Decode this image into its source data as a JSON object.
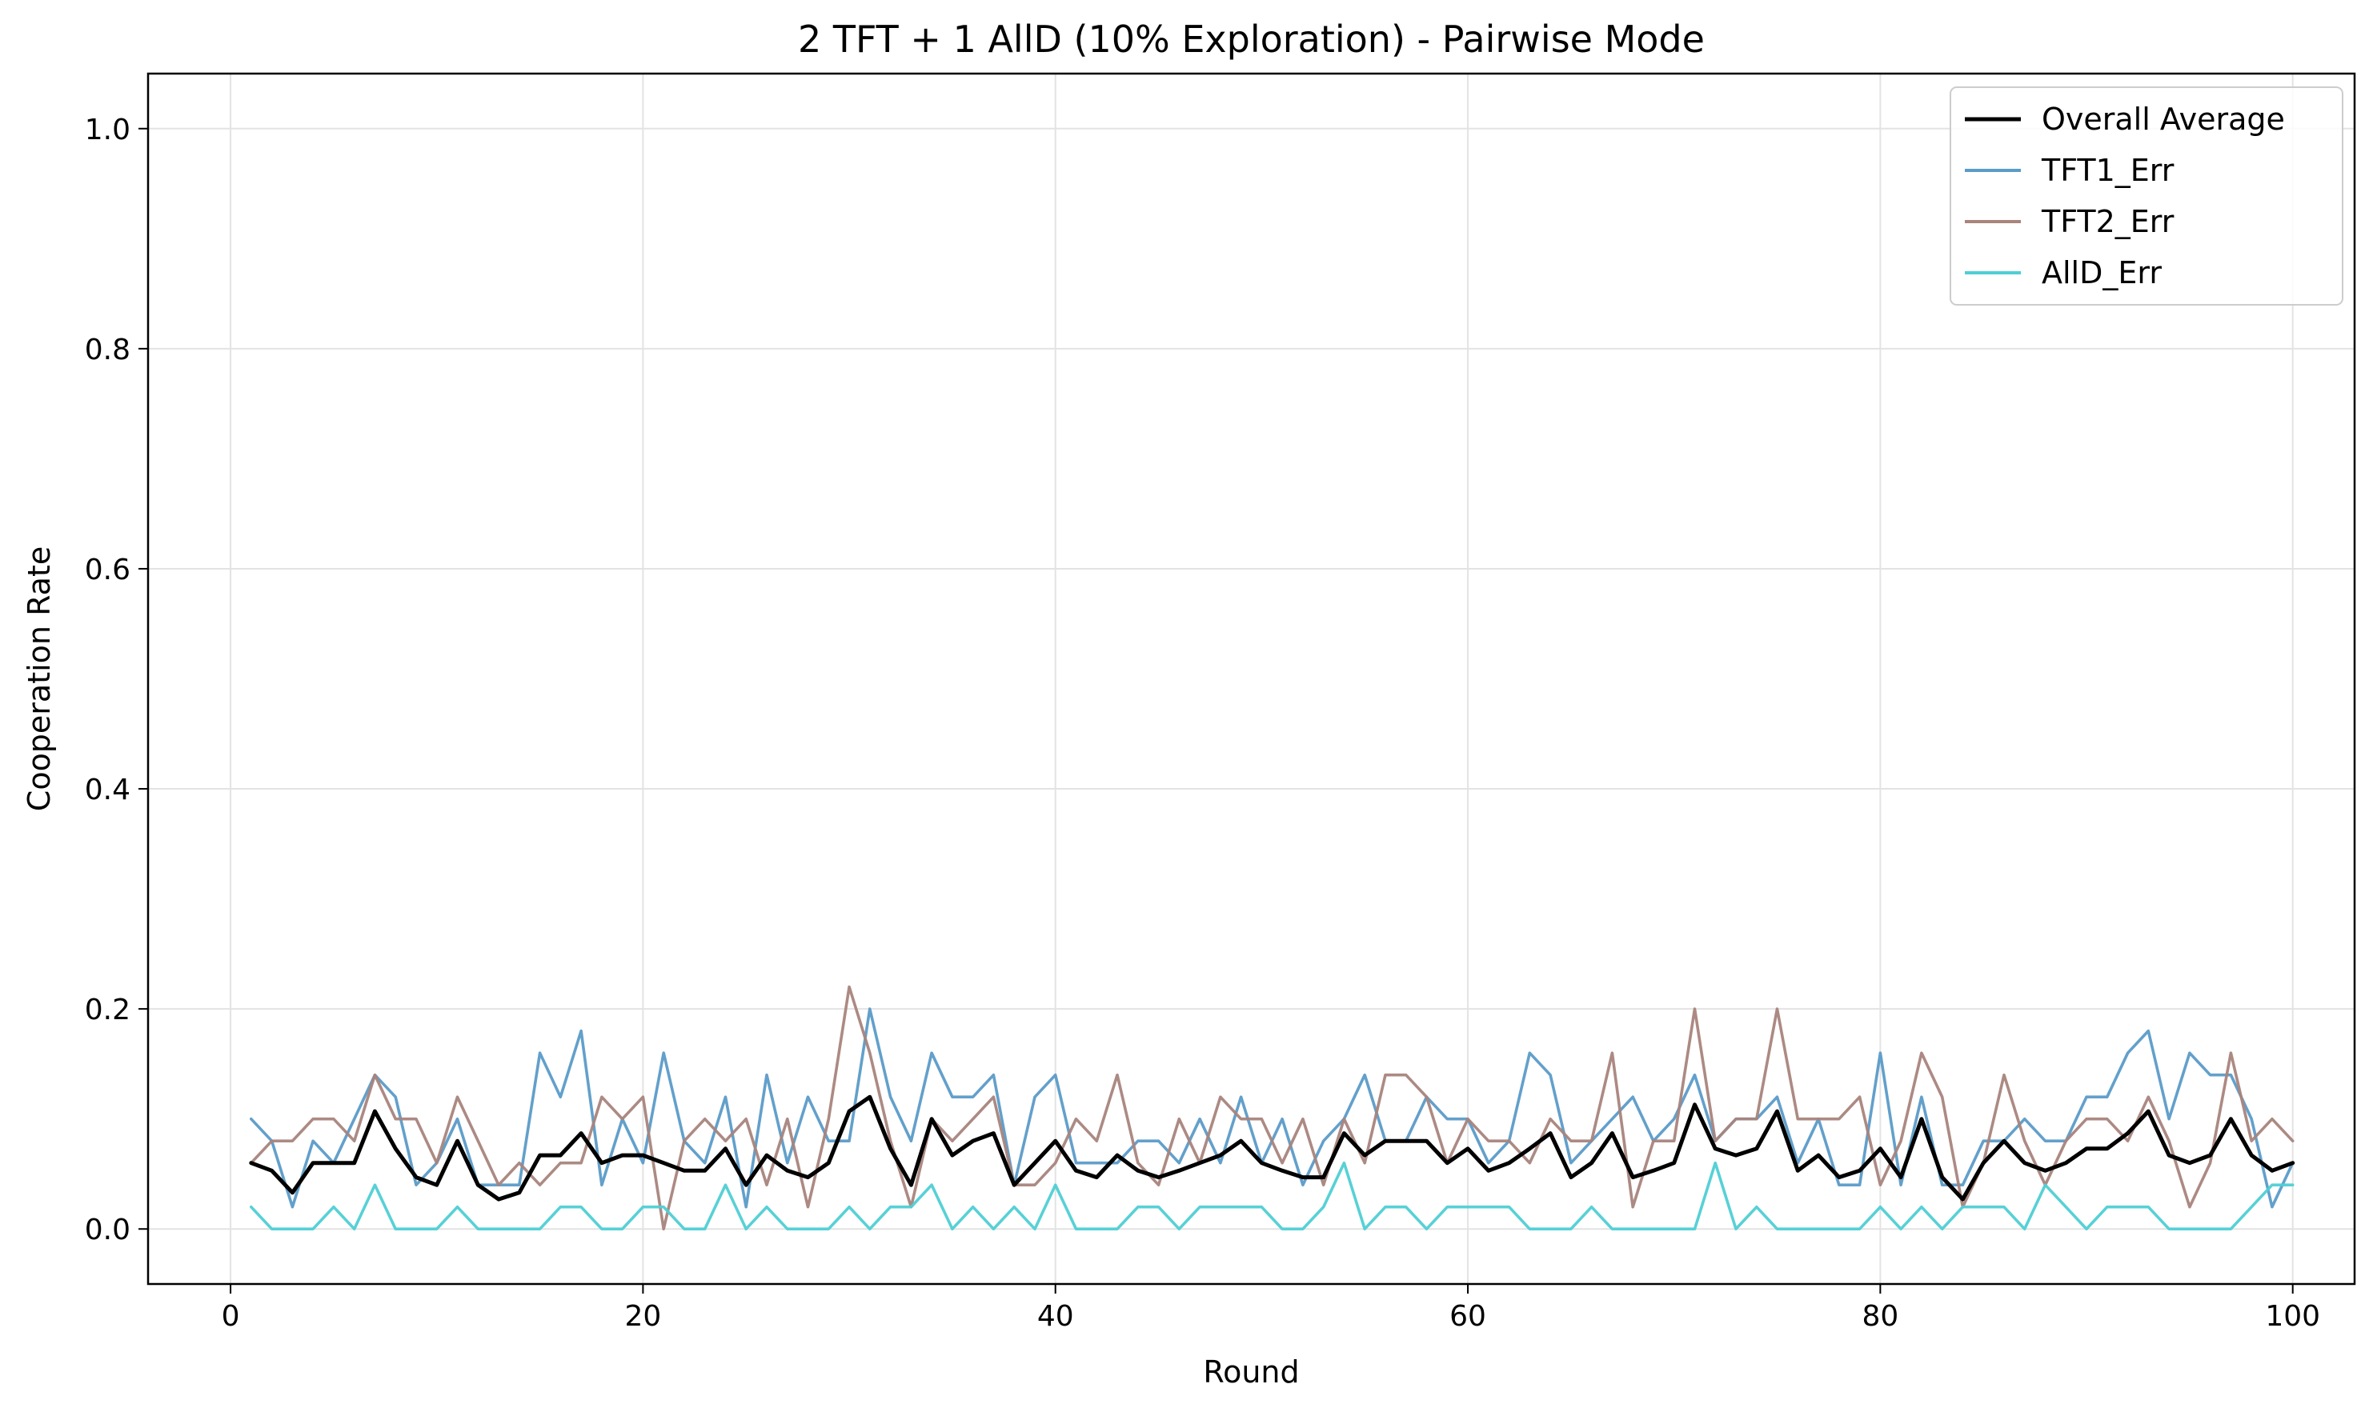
{
  "chart_data": {
    "type": "line",
    "title": "2 TFT + 1 AllD (10% Exploration) - Pairwise Mode",
    "xlabel": "Round",
    "ylabel": "Cooperation Rate",
    "xlim": [
      -4,
      103
    ],
    "ylim": [
      -0.05,
      1.05
    ],
    "xticks": [
      0,
      20,
      40,
      60,
      80,
      100
    ],
    "yticks": [
      0.0,
      0.2,
      0.4,
      0.6,
      0.8,
      1.0
    ],
    "xtick_labels": [
      "0",
      "20",
      "40",
      "60",
      "80",
      "100"
    ],
    "ytick_labels": [
      "0.0",
      "0.2",
      "0.4",
      "0.6",
      "0.8",
      "1.0"
    ],
    "grid": true,
    "legend_position": "top-right",
    "x": [
      1,
      2,
      3,
      4,
      5,
      6,
      7,
      8,
      9,
      10,
      11,
      12,
      13,
      14,
      15,
      16,
      17,
      18,
      19,
      20,
      21,
      22,
      23,
      24,
      25,
      26,
      27,
      28,
      29,
      30,
      31,
      32,
      33,
      34,
      35,
      36,
      37,
      38,
      39,
      40,
      41,
      42,
      43,
      44,
      45,
      46,
      47,
      48,
      49,
      50,
      51,
      52,
      53,
      54,
      55,
      56,
      57,
      58,
      59,
      60,
      61,
      62,
      63,
      64,
      65,
      66,
      67,
      68,
      69,
      70,
      71,
      72,
      73,
      74,
      75,
      76,
      77,
      78,
      79,
      80,
      81,
      82,
      83,
      84,
      85,
      86,
      87,
      88,
      89,
      90,
      91,
      92,
      93,
      94,
      95,
      96,
      97,
      98,
      99,
      100
    ],
    "series": [
      {
        "name": "Overall Average",
        "color": "#000000",
        "values": [
          0.06,
          0.053,
          0.033,
          0.06,
          0.06,
          0.06,
          0.107,
          0.073,
          0.047,
          0.04,
          0.08,
          0.04,
          0.027,
          0.033,
          0.067,
          0.067,
          0.087,
          0.06,
          0.067,
          0.067,
          0.06,
          0.053,
          0.053,
          0.073,
          0.04,
          0.067,
          0.053,
          0.047,
          0.06,
          0.107,
          0.12,
          0.073,
          0.04,
          0.1,
          0.067,
          0.08,
          0.087,
          0.04,
          0.06,
          0.08,
          0.053,
          0.047,
          0.067,
          0.053,
          0.047,
          0.053,
          0.06,
          0.067,
          0.08,
          0.06,
          0.053,
          0.047,
          0.047,
          0.087,
          0.067,
          0.08,
          0.08,
          0.08,
          0.06,
          0.073,
          0.053,
          0.06,
          0.073,
          0.087,
          0.047,
          0.06,
          0.087,
          0.047,
          0.053,
          0.06,
          0.113,
          0.073,
          0.067,
          0.073,
          0.107,
          0.053,
          0.067,
          0.047,
          0.053,
          0.073,
          0.047,
          0.1,
          0.047,
          0.027,
          0.06,
          0.08,
          0.06,
          0.053,
          0.06,
          0.073,
          0.073,
          0.087,
          0.107,
          0.067,
          0.06,
          0.067,
          0.1,
          0.067,
          0.053,
          0.06
        ]
      },
      {
        "name": "TFT1_Err",
        "color": "#5b9bc8",
        "values": [
          0.1,
          0.08,
          0.02,
          0.08,
          0.06,
          0.1,
          0.14,
          0.12,
          0.04,
          0.06,
          0.1,
          0.04,
          0.04,
          0.04,
          0.16,
          0.12,
          0.18,
          0.04,
          0.1,
          0.06,
          0.16,
          0.08,
          0.06,
          0.12,
          0.02,
          0.14,
          0.06,
          0.12,
          0.08,
          0.08,
          0.2,
          0.12,
          0.08,
          0.16,
          0.12,
          0.12,
          0.14,
          0.04,
          0.12,
          0.14,
          0.06,
          0.06,
          0.06,
          0.08,
          0.08,
          0.06,
          0.1,
          0.06,
          0.12,
          0.06,
          0.1,
          0.04,
          0.08,
          0.1,
          0.14,
          0.08,
          0.08,
          0.12,
          0.1,
          0.1,
          0.06,
          0.08,
          0.16,
          0.14,
          0.06,
          0.08,
          0.1,
          0.12,
          0.08,
          0.1,
          0.14,
          0.08,
          0.1,
          0.1,
          0.12,
          0.06,
          0.1,
          0.04,
          0.04,
          0.16,
          0.04,
          0.12,
          0.04,
          0.04,
          0.08,
          0.08,
          0.1,
          0.08,
          0.08,
          0.12,
          0.12,
          0.16,
          0.18,
          0.1,
          0.16,
          0.14,
          0.14,
          0.1,
          0.02,
          0.06
        ]
      },
      {
        "name": "TFT2_Err",
        "color": "#a8847c",
        "values": [
          0.06,
          0.08,
          0.08,
          0.1,
          0.1,
          0.08,
          0.14,
          0.1,
          0.1,
          0.06,
          0.12,
          0.08,
          0.04,
          0.06,
          0.04,
          0.06,
          0.06,
          0.12,
          0.1,
          0.12,
          0.0,
          0.08,
          0.1,
          0.08,
          0.1,
          0.04,
          0.1,
          0.02,
          0.1,
          0.22,
          0.16,
          0.08,
          0.02,
          0.1,
          0.08,
          0.1,
          0.12,
          0.04,
          0.04,
          0.06,
          0.1,
          0.08,
          0.14,
          0.06,
          0.04,
          0.1,
          0.06,
          0.12,
          0.1,
          0.1,
          0.06,
          0.1,
          0.04,
          0.1,
          0.06,
          0.14,
          0.14,
          0.12,
          0.06,
          0.1,
          0.08,
          0.08,
          0.06,
          0.1,
          0.08,
          0.08,
          0.16,
          0.02,
          0.08,
          0.08,
          0.2,
          0.08,
          0.1,
          0.1,
          0.2,
          0.1,
          0.1,
          0.1,
          0.12,
          0.04,
          0.08,
          0.16,
          0.12,
          0.02,
          0.06,
          0.14,
          0.08,
          0.04,
          0.08,
          0.1,
          0.1,
          0.08,
          0.12,
          0.08,
          0.02,
          0.06,
          0.16,
          0.08,
          0.1,
          0.08
        ]
      },
      {
        "name": "AllD_Err",
        "color": "#4ecfd4",
        "values": [
          0.02,
          0.0,
          0.0,
          0.0,
          0.02,
          0.0,
          0.04,
          0.0,
          0.0,
          0.0,
          0.02,
          0.0,
          0.0,
          0.0,
          0.0,
          0.02,
          0.02,
          0.0,
          0.0,
          0.02,
          0.02,
          0.0,
          0.0,
          0.04,
          0.0,
          0.02,
          0.0,
          0.0,
          0.0,
          0.02,
          0.0,
          0.02,
          0.02,
          0.04,
          0.0,
          0.02,
          0.0,
          0.02,
          0.0,
          0.04,
          0.0,
          0.0,
          0.0,
          0.02,
          0.02,
          0.0,
          0.02,
          0.02,
          0.02,
          0.02,
          0.0,
          0.0,
          0.02,
          0.06,
          0.0,
          0.02,
          0.02,
          0.0,
          0.02,
          0.02,
          0.02,
          0.02,
          0.0,
          0.0,
          0.0,
          0.02,
          0.0,
          0.0,
          0.0,
          0.0,
          0.0,
          0.06,
          0.0,
          0.02,
          0.0,
          0.0,
          0.0,
          0.0,
          0.0,
          0.02,
          0.0,
          0.02,
          0.0,
          0.02,
          0.02,
          0.02,
          0.0,
          0.04,
          0.02,
          0.0,
          0.02,
          0.02,
          0.02,
          0.0,
          0.0,
          0.0,
          0.0,
          0.02,
          0.04,
          0.04
        ]
      }
    ]
  }
}
